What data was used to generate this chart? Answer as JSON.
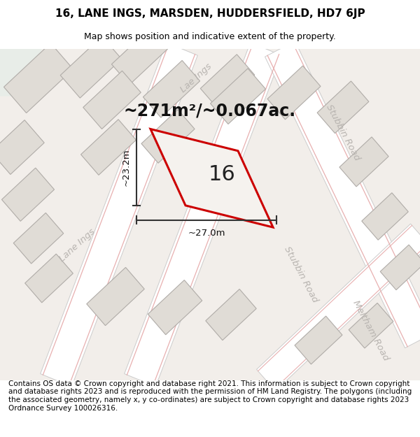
{
  "title": "16, LANE INGS, MARSDEN, HUDDERSFIELD, HD7 6JP",
  "subtitle": "Map shows position and indicative extent of the property.",
  "footer": "Contains OS data © Crown copyright and database right 2021. This information is subject to Crown copyright and database rights 2023 and is reproduced with the permission of HM Land Registry. The polygons (including the associated geometry, namely x, y co-ordinates) are subject to Crown copyright and database rights 2023 Ordnance Survey 100026316.",
  "area_label": "~271m²/~0.067ac.",
  "width_label": "~27.0m",
  "height_label": "~23.2m",
  "plot_number": "16",
  "map_bg": "#f2eeea",
  "road_fill": "#ffffff",
  "road_stroke": "#cccccc",
  "building_fill": "#e0dcd6",
  "building_stroke": "#b0aca8",
  "pink_line": "#e8b0b0",
  "road_label_color": "#b8b4b0",
  "plot_outline_color": "#cc0000",
  "plot_fill": "#f0eeec",
  "dim_line_color": "#333333",
  "green_patch": "#e8ede8",
  "title_fontsize": 11,
  "subtitle_fontsize": 9,
  "footer_fontsize": 7.5,
  "area_fontsize": 17,
  "plot_num_fontsize": 22,
  "dim_fontsize": 9.5,
  "road_label_fontsize": 9.5
}
